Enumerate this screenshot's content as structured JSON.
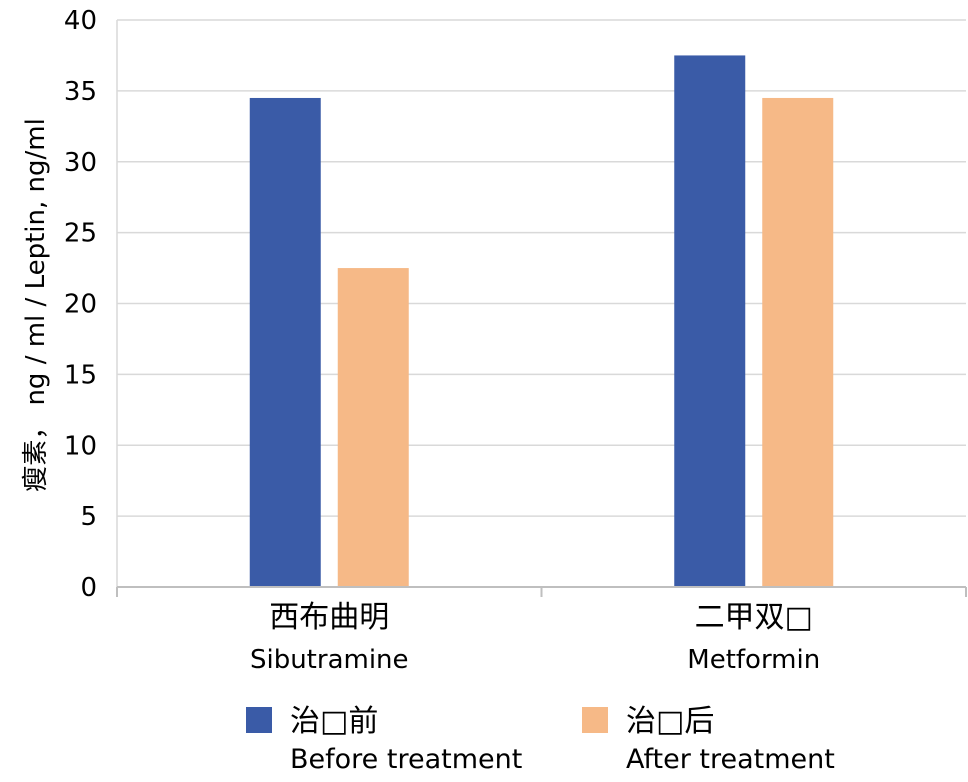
{
  "chart_data": {
    "type": "bar",
    "categories": [
      {
        "main": "西布曲明",
        "sub": "Sibutramine"
      },
      {
        "main": "二甲双□",
        "sub": "Metformin"
      }
    ],
    "series": [
      {
        "name_main": "治□前",
        "name_sub": "Before treatment",
        "color": "#3a5ba7",
        "values": [
          34.5,
          37.5
        ]
      },
      {
        "name_main": "治□后",
        "name_sub": "After treatment",
        "color": "#f6b987",
        "values": [
          22.5,
          34.5
        ]
      }
    ],
    "ylabel": "瘦素， ng / ml / Leptin, ng/ml",
    "ylim": [
      0,
      40
    ],
    "yticks": [
      0,
      5,
      10,
      15,
      20,
      25,
      30,
      35,
      40
    ],
    "grid": true,
    "legend_position": "bottom"
  }
}
